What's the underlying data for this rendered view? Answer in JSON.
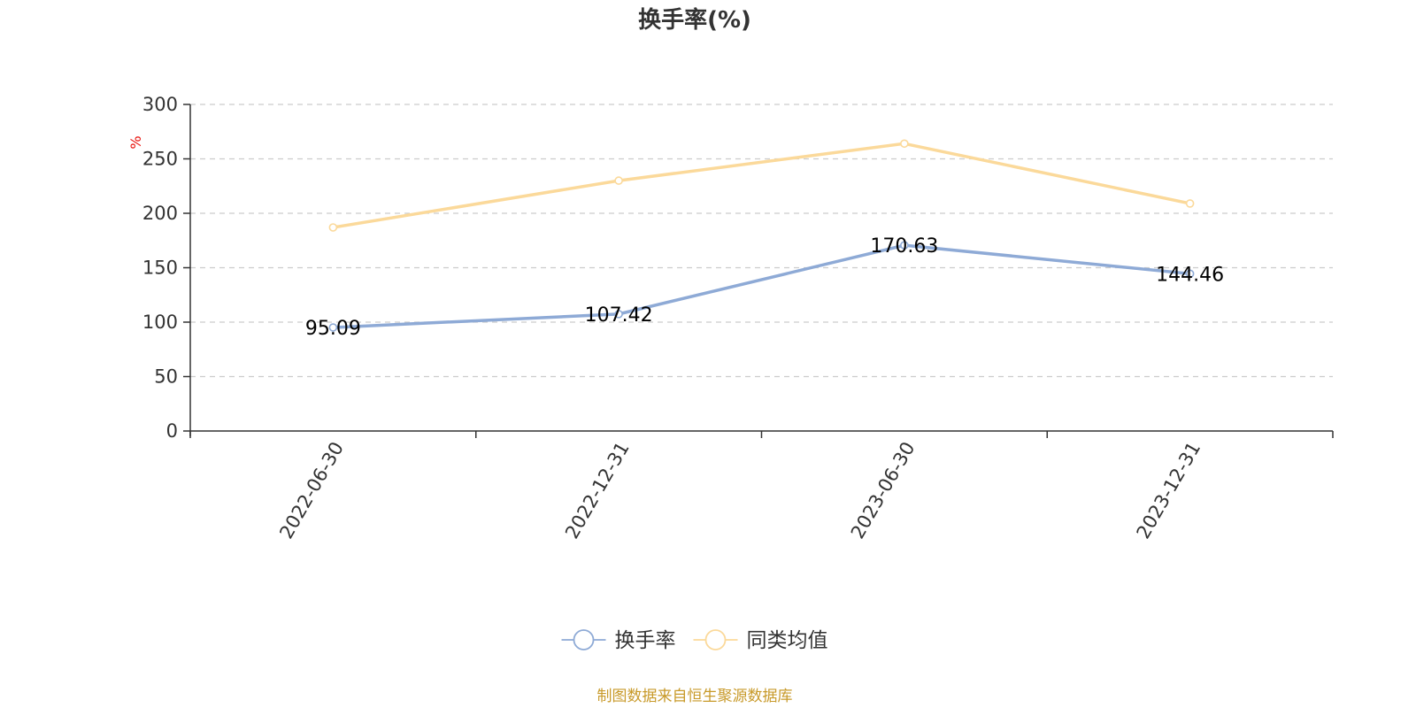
{
  "chart_data": {
    "type": "line",
    "title": "换手率(%)",
    "ylabel": "%",
    "ylim": [
      0,
      300
    ],
    "yticks": [
      0,
      50,
      100,
      150,
      200,
      250,
      300
    ],
    "categories": [
      "2022-06-30",
      "2022-12-31",
      "2023-06-30",
      "2023-12-31"
    ],
    "series": [
      {
        "name": "换手率",
        "values": [
          95.09,
          107.42,
          170.63,
          144.46
        ],
        "color": "#8eaad6",
        "show_labels": true
      },
      {
        "name": "同类均值",
        "values": [
          187,
          230,
          264,
          209
        ],
        "color": "#fbd99a",
        "show_labels": false
      }
    ],
    "grid": true,
    "legend": "bottom-center"
  },
  "source_note": "制图数据来自恒生聚源数据库",
  "colors": {
    "axis": "#333333",
    "grid": "#cccccc",
    "unit": "#e8120c",
    "source": "#c89a2a"
  }
}
